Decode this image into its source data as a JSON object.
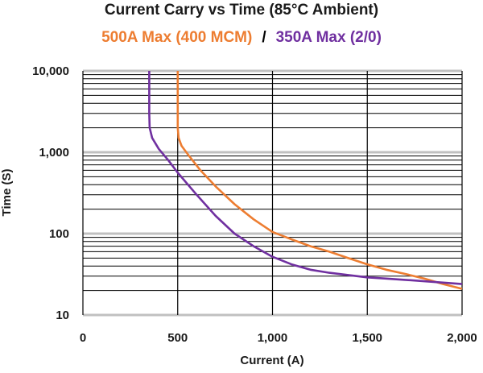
{
  "chart_data": {
    "type": "line",
    "title": "Current Carry vs Time (85°C Ambient)",
    "xlabel": "Current (A)",
    "ylabel": "Time (S)",
    "x_scale": "linear",
    "y_scale": "log",
    "xlim": [
      0,
      2000
    ],
    "ylim": [
      10,
      10000
    ],
    "x_ticks": [
      0,
      500,
      1000,
      1500,
      2000
    ],
    "x_tick_labels": [
      "0",
      "500",
      "1,000",
      "1,500",
      "2,000"
    ],
    "y_ticks": [
      10,
      100,
      1000,
      10000
    ],
    "y_tick_labels": [
      "10",
      "100",
      "1,000",
      "10,000"
    ],
    "grid": true,
    "legend_placement": "top",
    "series": [
      {
        "name": "500A Max (400 MCM)",
        "color": "#ED7D31",
        "points": [
          [
            500,
            10000
          ],
          [
            500,
            2000
          ],
          [
            505,
            1500
          ],
          [
            520,
            1200
          ],
          [
            560,
            900
          ],
          [
            620,
            600
          ],
          [
            700,
            380
          ],
          [
            800,
            230
          ],
          [
            900,
            150
          ],
          [
            1000,
            105
          ],
          [
            1100,
            85
          ],
          [
            1200,
            70
          ],
          [
            1300,
            60
          ],
          [
            1400,
            50
          ],
          [
            1500,
            42
          ],
          [
            1600,
            36
          ],
          [
            1700,
            32
          ],
          [
            1800,
            28
          ],
          [
            1900,
            24
          ],
          [
            2000,
            21
          ]
        ]
      },
      {
        "name": "350A Max (2/0)",
        "color": "#7030A0",
        "points": [
          [
            350,
            10000
          ],
          [
            350,
            3000
          ],
          [
            352,
            2000
          ],
          [
            365,
            1500
          ],
          [
            400,
            1100
          ],
          [
            450,
            800
          ],
          [
            500,
            560
          ],
          [
            600,
            300
          ],
          [
            700,
            165
          ],
          [
            800,
            100
          ],
          [
            900,
            70
          ],
          [
            1000,
            52
          ],
          [
            1100,
            42
          ],
          [
            1200,
            36
          ],
          [
            1300,
            33
          ],
          [
            1400,
            31
          ],
          [
            1500,
            29
          ],
          [
            1600,
            28
          ],
          [
            1700,
            27
          ],
          [
            1800,
            26
          ],
          [
            1900,
            25
          ],
          [
            2000,
            24
          ]
        ]
      }
    ]
  }
}
